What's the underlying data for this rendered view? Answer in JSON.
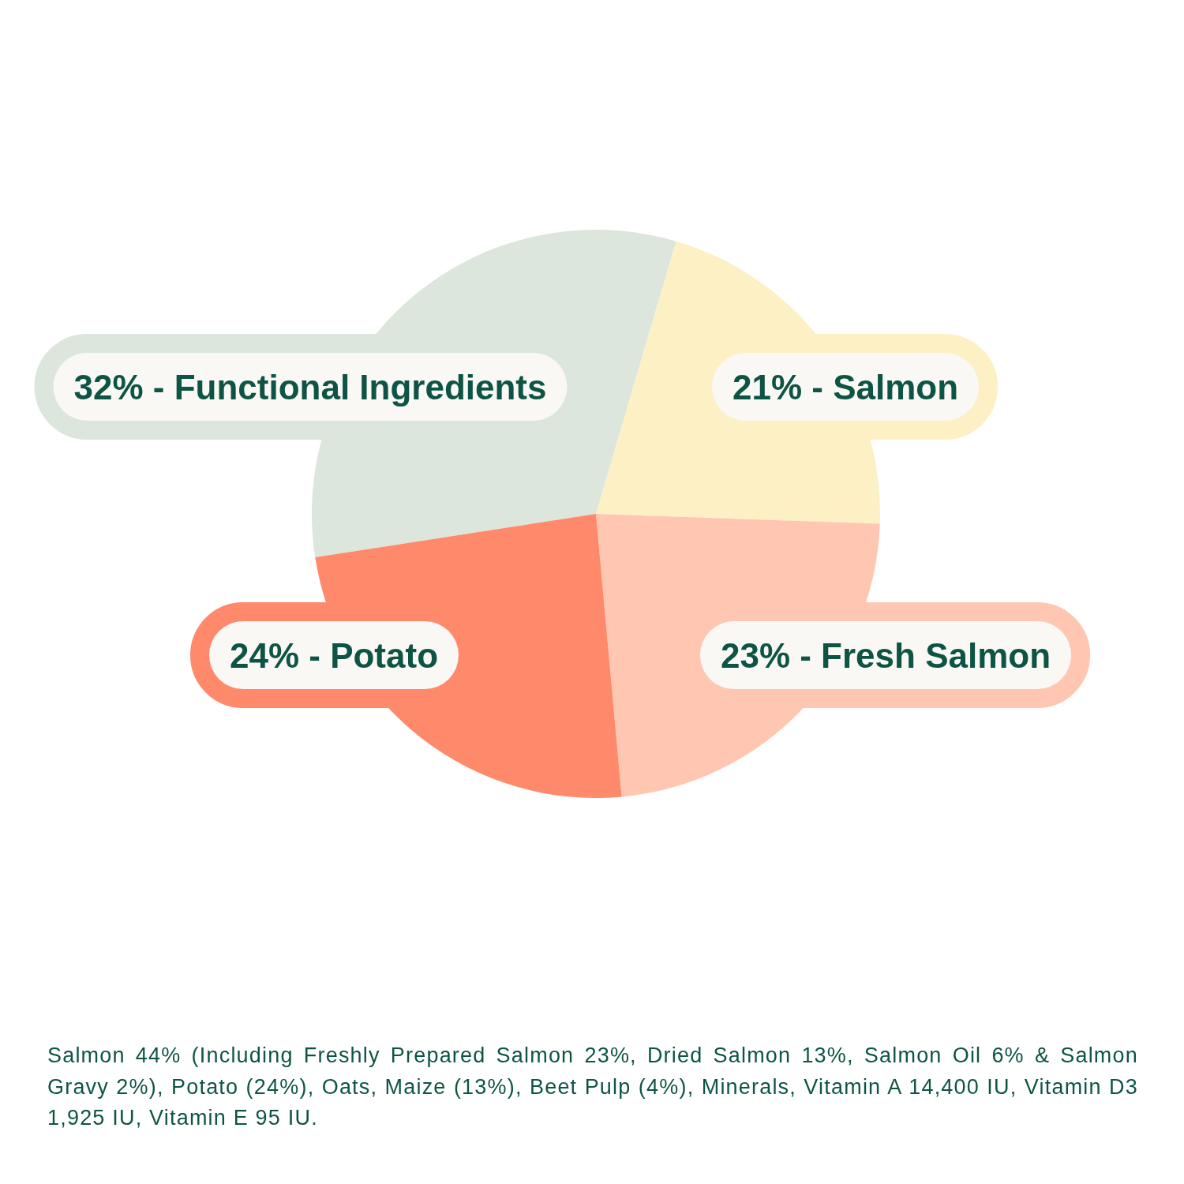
{
  "chart_data": {
    "type": "pie",
    "categories": [
      "Functional Ingredients",
      "Salmon",
      "Fresh Salmon",
      "Potato"
    ],
    "values": [
      32,
      21,
      23,
      24
    ],
    "colors": [
      "#dce6dc",
      "#fdf0c5",
      "#ffc7b2",
      "#ff8a6b"
    ],
    "value_labels": [
      "32% -",
      "21% -",
      "23% -",
      "24% -"
    ],
    "annotations": [
      "Salmon 44% (Including Freshly Prepared Salmon 23%, Dried Salmon 13%, Salmon Oil 6% & Salmon Gravy 2%), Potato (24%), Oats, Maize (13%), Beet Pulp (4%), Minerals, Vitamin A 14,400 IU, Vitamin D3 1,925 IU, Vitamin E 95 IU."
    ]
  }
}
